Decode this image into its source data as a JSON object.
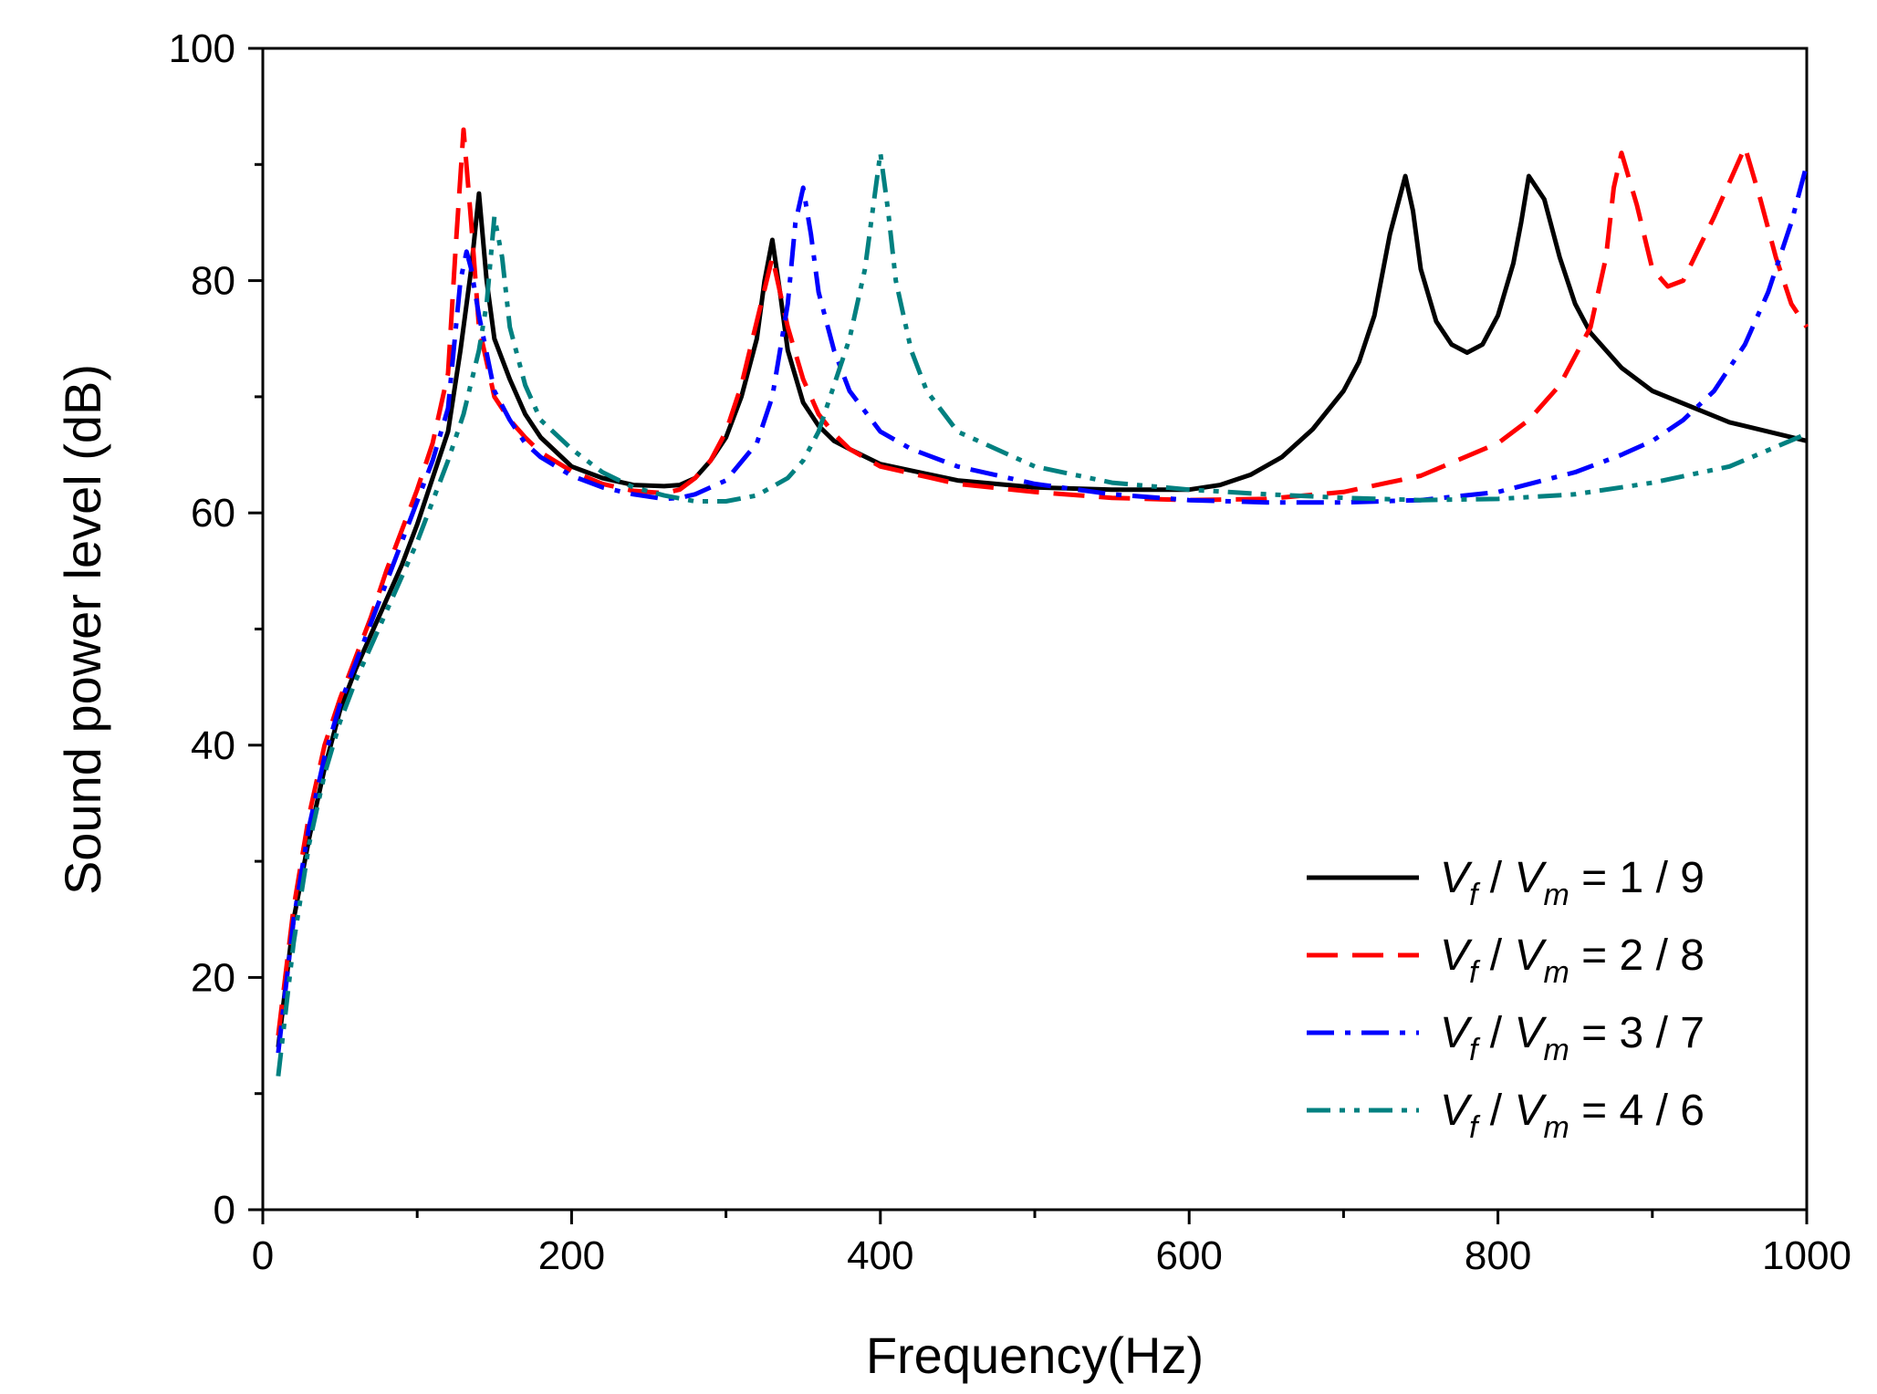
{
  "chart_data": {
    "type": "line",
    "title": "",
    "xlabel": "Frequency(Hz)",
    "ylabel": "Sound power level (dB)",
    "xlim": [
      0,
      1000
    ],
    "ylim": [
      0,
      100
    ],
    "x_ticks": [
      0,
      200,
      400,
      600,
      800,
      1000
    ],
    "y_ticks": [
      0,
      20,
      40,
      60,
      80,
      100
    ],
    "x_tick_labels": [
      "0",
      "200",
      "400",
      "600",
      "800",
      "1000"
    ],
    "y_tick_labels": [
      "0",
      "20",
      "40",
      "60",
      "80",
      "100"
    ],
    "grid": false,
    "legend_position": "bottom-right",
    "series": [
      {
        "name": "Vf / Vm = 1 / 9",
        "legend": {
          "v1": "V",
          "s1": "f",
          "sep": "/",
          "v2": "V",
          "s2": "m",
          "ratio": "= 1 / 9"
        },
        "color": "#000000",
        "dash": "solid",
        "x": [
          10,
          20,
          30,
          40,
          50,
          60,
          70,
          80,
          90,
          100,
          110,
          120,
          128,
          135,
          140,
          145,
          150,
          160,
          170,
          180,
          200,
          220,
          240,
          260,
          270,
          280,
          290,
          300,
          310,
          320,
          325,
          330,
          335,
          340,
          350,
          360,
          370,
          380,
          400,
          450,
          500,
          550,
          600,
          620,
          640,
          660,
          680,
          700,
          710,
          720,
          730,
          740,
          745,
          750,
          760,
          770,
          780,
          790,
          800,
          810,
          815,
          820,
          830,
          840,
          850,
          860,
          880,
          900,
          950,
          1000
        ],
        "y": [
          14,
          25,
          32,
          38,
          43,
          46.5,
          49.5,
          52.5,
          55.5,
          59,
          63,
          67,
          74,
          81,
          87.5,
          80,
          75,
          71.5,
          68.5,
          66.5,
          64,
          63,
          62.4,
          62.3,
          62.4,
          63,
          64.5,
          66.5,
          70,
          75,
          80,
          83.5,
          79,
          74,
          69.5,
          67.5,
          66.2,
          65.5,
          64.2,
          62.8,
          62.2,
          62.0,
          62.0,
          62.4,
          63.3,
          64.8,
          67.2,
          70.5,
          73,
          77,
          84,
          89,
          86,
          81,
          76.5,
          74.5,
          73.8,
          74.5,
          77,
          81.5,
          85,
          89,
          87,
          82,
          78,
          75.5,
          72.5,
          70.5,
          67.8,
          66.2
        ]
      },
      {
        "name": "Vf / Vm = 2 / 8",
        "legend": {
          "v1": "V",
          "s1": "f",
          "sep": "/",
          "v2": "V",
          "s2": "m",
          "ratio": "= 2 / 8"
        },
        "color": "#ff0000",
        "dash": "dashed",
        "x": [
          10,
          20,
          30,
          40,
          50,
          60,
          70,
          80,
          90,
          100,
          110,
          120,
          125,
          130,
          135,
          140,
          150,
          160,
          170,
          180,
          200,
          220,
          240,
          260,
          270,
          280,
          290,
          300,
          310,
          320,
          330,
          340,
          350,
          360,
          370,
          380,
          400,
          450,
          500,
          550,
          600,
          650,
          700,
          750,
          800,
          820,
          840,
          860,
          870,
          875,
          880,
          890,
          900,
          910,
          920,
          940,
          955,
          960,
          970,
          980,
          990,
          1000
        ],
        "y": [
          15,
          26,
          34,
          40,
          44,
          47.5,
          51,
          55,
          58.5,
          62,
          66,
          72,
          83,
          93,
          85,
          76,
          70,
          68,
          66.5,
          65.2,
          63.6,
          62.5,
          61.9,
          61.7,
          62,
          63,
          64.5,
          67,
          71,
          76.5,
          82,
          76,
          71.5,
          68.5,
          66.8,
          65.5,
          64,
          62.5,
          61.8,
          61.3,
          61.1,
          61.2,
          61.8,
          63.2,
          66,
          68,
          71,
          76,
          82,
          88,
          91,
          86.5,
          81,
          79.5,
          80,
          85.5,
          90,
          91.5,
          87,
          82,
          78,
          76
        ]
      },
      {
        "name": "Vf / Vm = 3 / 7",
        "legend": {
          "v1": "V",
          "s1": "f",
          "sep": "/",
          "v2": "V",
          "s2": "m",
          "ratio": "= 3 / 7"
        },
        "color": "#0000ff",
        "dash": "dashdot",
        "x": [
          10,
          20,
          30,
          40,
          50,
          60,
          70,
          80,
          90,
          100,
          110,
          120,
          128,
          132,
          135,
          140,
          150,
          160,
          170,
          180,
          200,
          220,
          240,
          260,
          270,
          280,
          300,
          320,
          330,
          340,
          345,
          350,
          355,
          360,
          370,
          380,
          400,
          420,
          450,
          500,
          550,
          600,
          650,
          700,
          750,
          800,
          850,
          880,
          900,
          920,
          940,
          960,
          975,
          990,
          1000
        ],
        "y": [
          13.5,
          25,
          33,
          39,
          43.5,
          47,
          50.5,
          54,
          57.5,
          61,
          64.5,
          69,
          80,
          82.5,
          81,
          77,
          70.5,
          68,
          66,
          64.8,
          63.2,
          62.2,
          61.6,
          61.2,
          61.3,
          61.6,
          62.8,
          66,
          70,
          78,
          85,
          88,
          84,
          79,
          74,
          70.5,
          67,
          65.5,
          64,
          62.5,
          61.6,
          61.1,
          60.9,
          60.9,
          61.1,
          61.8,
          63.5,
          65,
          66.2,
          68,
          70.5,
          74.5,
          79,
          85,
          90
        ]
      },
      {
        "name": "Vf / Vm = 4 / 6",
        "legend": {
          "v1": "V",
          "s1": "f",
          "sep": "/",
          "v2": "V",
          "s2": "m",
          "ratio": "= 4 / 6"
        },
        "color": "#008080",
        "dash": "dashdotdot",
        "x": [
          10,
          20,
          30,
          40,
          50,
          60,
          70,
          80,
          90,
          100,
          110,
          120,
          130,
          140,
          145,
          150,
          155,
          160,
          170,
          180,
          200,
          220,
          240,
          260,
          280,
          300,
          320,
          340,
          350,
          360,
          370,
          380,
          390,
          395,
          400,
          405,
          410,
          420,
          430,
          450,
          500,
          550,
          600,
          650,
          700,
          750,
          800,
          850,
          900,
          950,
          1000
        ],
        "y": [
          11.5,
          23,
          31.5,
          37.5,
          42,
          45.5,
          48.5,
          51.5,
          54.5,
          57.5,
          61,
          64.5,
          68.5,
          74,
          78,
          85.5,
          82,
          76,
          71,
          68,
          65.5,
          63.5,
          62.2,
          61.5,
          61,
          61,
          61.5,
          63,
          64.5,
          67,
          71,
          75,
          81,
          86,
          91,
          86,
          80,
          74,
          70.5,
          67,
          64,
          62.6,
          62.0,
          61.6,
          61.3,
          61.1,
          61.2,
          61.6,
          62.6,
          64,
          66.8
        ]
      }
    ]
  }
}
